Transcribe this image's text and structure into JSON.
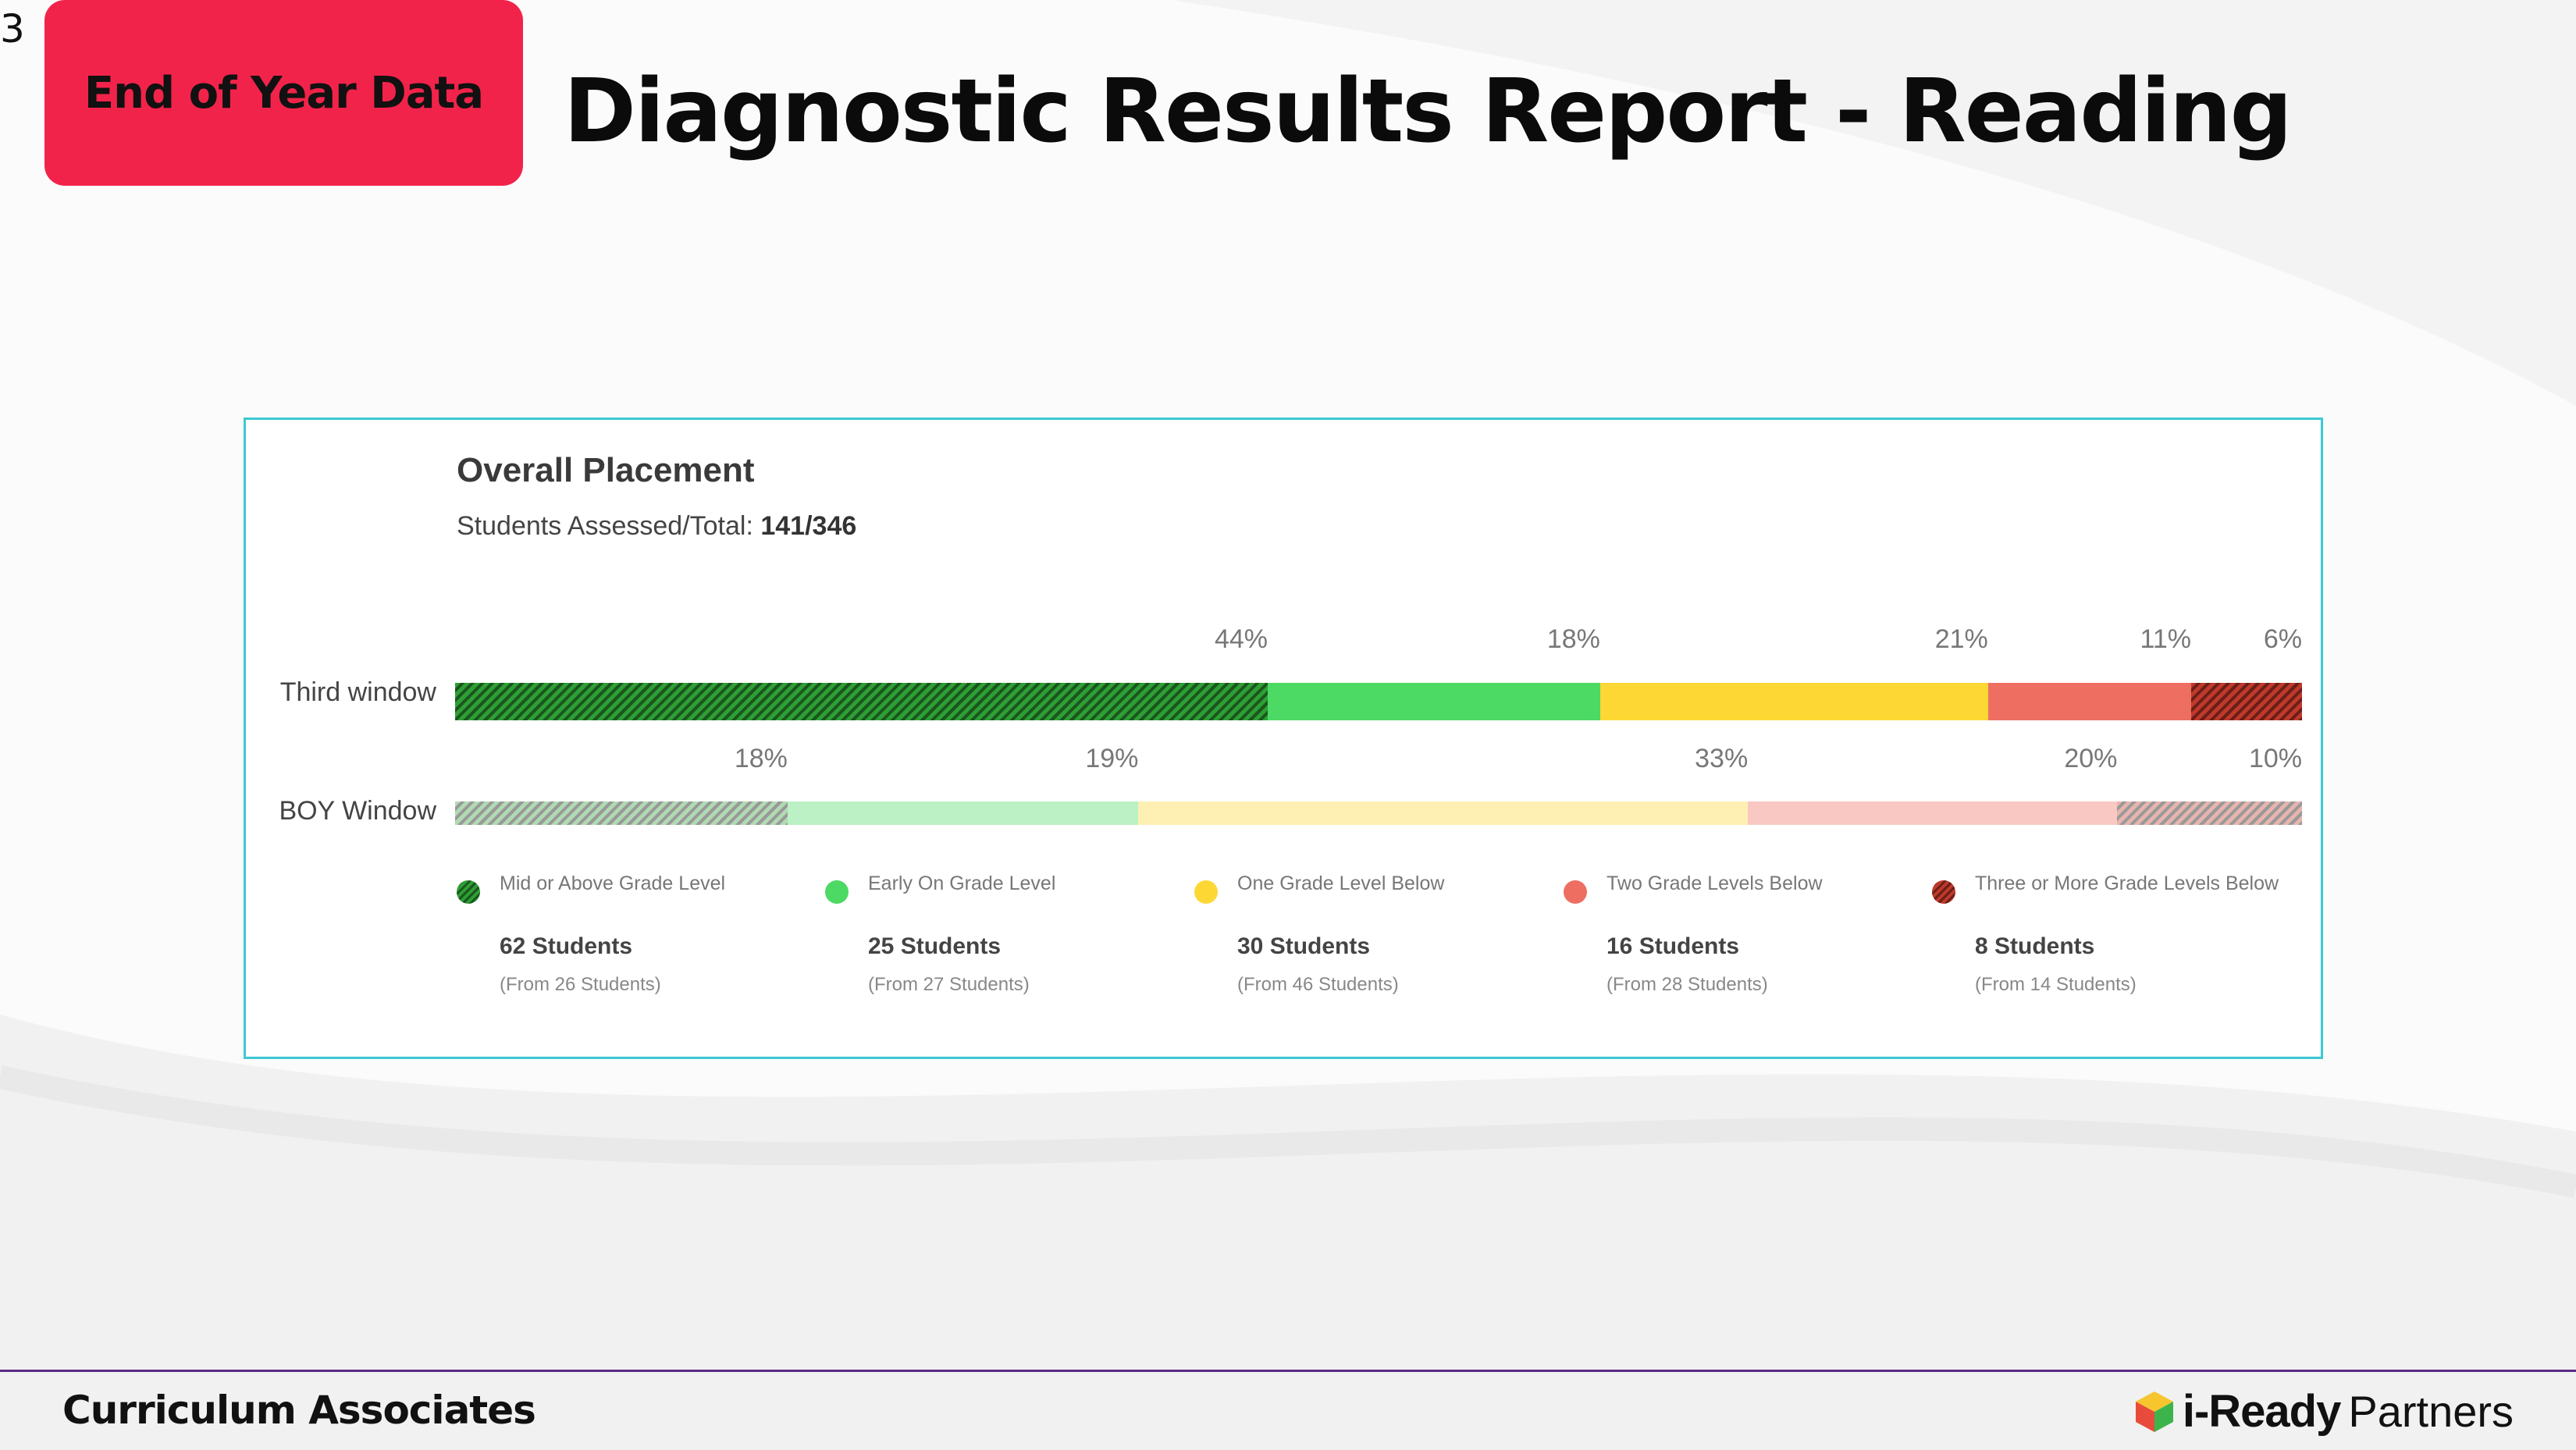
{
  "slide": {
    "number": "3",
    "tag": "End of Year Data",
    "title": "Diagnostic Results Report - Reading"
  },
  "panel": {
    "title": "Overall Placement",
    "subtitle_label": "Students Assessed/Total:",
    "subtitle_value": "141/346"
  },
  "chart_data": {
    "type": "bar",
    "orientation": "horizontal-stacked-100",
    "title": "Overall Placement",
    "categories": [
      "Third window",
      "BOY Window"
    ],
    "series": [
      {
        "name": "Mid or Above Grade Level",
        "values": [
          44,
          18
        ],
        "color": "#2e9e35",
        "pattern": "hatched"
      },
      {
        "name": "Early On Grade Level",
        "values": [
          18,
          19
        ],
        "color": "#4cd964",
        "pattern": "solid"
      },
      {
        "name": "One Grade Level Below",
        "values": [
          21,
          33
        ],
        "color": "#fdd835",
        "pattern": "solid"
      },
      {
        "name": "Two Grade Levels Below",
        "values": [
          11,
          20
        ],
        "color": "#ee6e61",
        "pattern": "solid"
      },
      {
        "name": "Three or More Grade Levels Below",
        "values": [
          6,
          10
        ],
        "color": "#c0392b",
        "pattern": "hatched"
      }
    ],
    "value_labels": [
      [
        "44%",
        "18%",
        "21%",
        "11%",
        "6%"
      ],
      [
        "18%",
        "19%",
        "33%",
        "20%",
        "10%"
      ]
    ],
    "faded_rows": [
      false,
      true
    ],
    "legend": [
      {
        "name": "Mid or Above Grade Level",
        "count": "62 Students",
        "from": "(From 26 Students)"
      },
      {
        "name": "Early On Grade Level",
        "count": "25 Students",
        "from": "(From 27 Students)"
      },
      {
        "name": "One Grade Level Below",
        "count": "30 Students",
        "from": "(From 46 Students)"
      },
      {
        "name": "Two Grade Levels Below",
        "count": "16 Students",
        "from": "(From 28 Students)"
      },
      {
        "name": "Three or More Grade Levels Below",
        "count": "8 Students",
        "from": "(From 14 Students)"
      }
    ],
    "legend_placement": "bottom"
  },
  "footer": {
    "left": "Curriculum Associates",
    "brand": "i-Ready",
    "partners": "Partners"
  }
}
